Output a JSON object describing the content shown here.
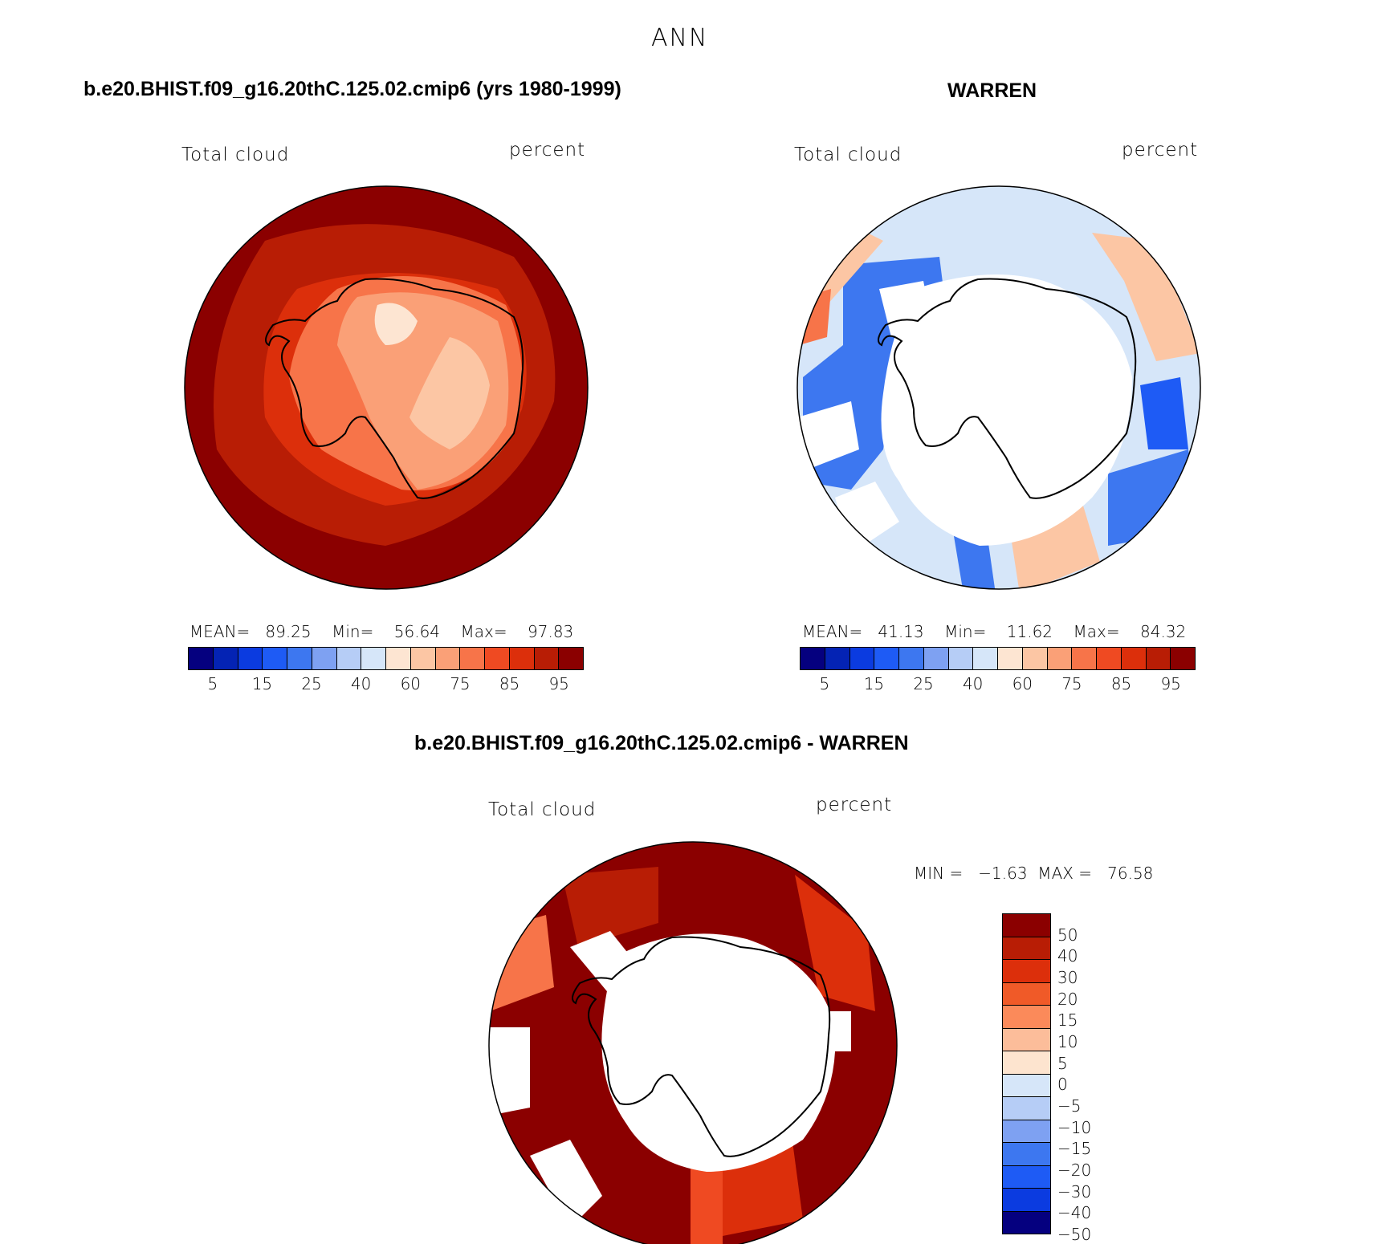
{
  "chart_data": {
    "type": "heatmap",
    "title": "ANN",
    "colors": {
      "scale16": [
        "#05007f",
        "#0423b4",
        "#0b3be0",
        "#1e5bf5",
        "#3d77f0",
        "#7ea1f2",
        "#b6cdf6",
        "#d6e6f9",
        "#fde5d2",
        "#fcc6a4",
        "#faa077",
        "#f77449",
        "#ef4a22",
        "#dc2f0b",
        "#b81d05",
        "#8b0000"
      ],
      "diff14": [
        "#8b0000",
        "#b81d05",
        "#dc2f0b",
        "#f05a28",
        "#fb8a5a",
        "#fcbd9a",
        "#fde4cf",
        "#d6e6f9",
        "#b6cdf6",
        "#7ea1f2",
        "#3d77f0",
        "#1e5bf5",
        "#0b3be0",
        "#05007f"
      ]
    },
    "panels": [
      {
        "header": "b.e20.BHIST.f09_g16.20thC.125.02.cmip6 (yrs 1980-1999)",
        "variable": "Total cloud",
        "units": "percent",
        "mean_label": "MEAN=",
        "mean": "89.25",
        "min_label": "Min=",
        "min": "56.64",
        "max_label": "Max=",
        "max": "97.83",
        "colorbar_ticks": [
          "5",
          "15",
          "25",
          "40",
          "60",
          "75",
          "85",
          "95"
        ]
      },
      {
        "header": "WARREN",
        "variable": "Total cloud",
        "units": "percent",
        "mean_label": "MEAN=",
        "mean": "41.13",
        "min_label": "Min=",
        "min": "11.62",
        "max_label": "Max=",
        "max": "84.32",
        "colorbar_ticks": [
          "5",
          "15",
          "25",
          "40",
          "60",
          "75",
          "85",
          "95"
        ]
      },
      {
        "header": "b.e20.BHIST.f09_g16.20thC.125.02.cmip6 - WARREN",
        "variable": "Total cloud",
        "units": "percent",
        "minmax_text": "MIN =   −1.63  MAX =   76.58",
        "colorbar_ticks": [
          "50",
          "40",
          "30",
          "20",
          "15",
          "10",
          "5",
          "0",
          "−5",
          "−10",
          "−15",
          "−20",
          "−30",
          "−40",
          "−50"
        ]
      }
    ]
  }
}
